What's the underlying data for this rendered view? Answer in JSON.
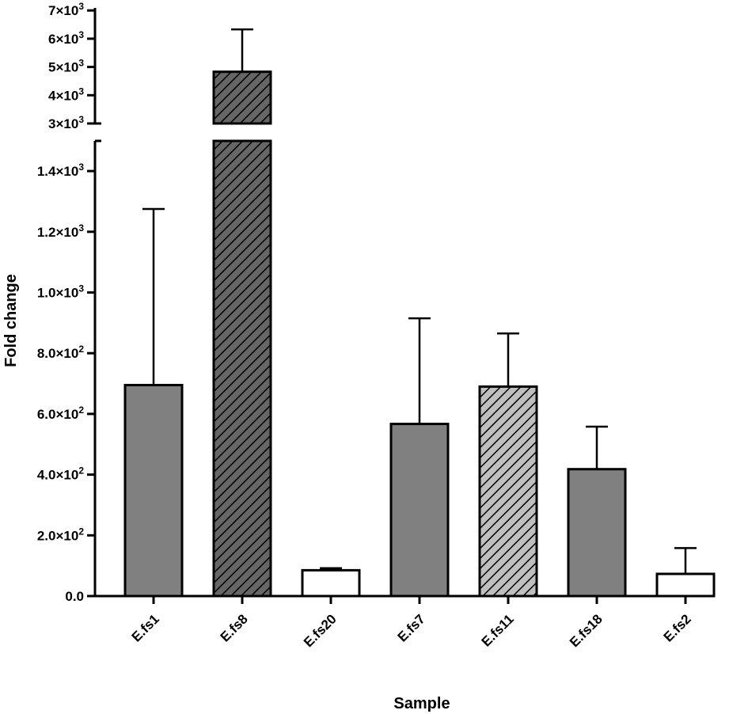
{
  "chart_data": {
    "type": "bar",
    "xlabel": "Sample",
    "ylabel": "Fold change",
    "axis_break": {
      "lower_range": [
        0,
        1500
      ],
      "upper_range": [
        3000,
        7000
      ]
    },
    "lower_ticks": [
      {
        "value": 0,
        "label": "0.0",
        "sup": ""
      },
      {
        "value": 200,
        "label": "2.0×10",
        "sup": "2"
      },
      {
        "value": 400,
        "label": "4.0×10",
        "sup": "2"
      },
      {
        "value": 600,
        "label": "6.0×10",
        "sup": "2"
      },
      {
        "value": 800,
        "label": "8.0×10",
        "sup": "2"
      },
      {
        "value": 1000,
        "label": "1.0×10",
        "sup": "3"
      },
      {
        "value": 1200,
        "label": "1.2×10",
        "sup": "3"
      },
      {
        "value": 1400,
        "label": "1.4×10",
        "sup": "3"
      }
    ],
    "upper_ticks": [
      {
        "value": 3000,
        "label": "3×10",
        "sup": "3"
      },
      {
        "value": 4000,
        "label": "4×10",
        "sup": "3"
      },
      {
        "value": 5000,
        "label": "5×10",
        "sup": "3"
      },
      {
        "value": 6000,
        "label": "6×10",
        "sup": "3"
      },
      {
        "value": 7000,
        "label": "7×10",
        "sup": "3"
      }
    ],
    "categories": [
      "E.fs1",
      "E.fs8",
      "E.fs20",
      "E.fs7",
      "E.fs11",
      "E.fs18",
      "E.fs2"
    ],
    "values": [
      695,
      4830,
      85,
      567,
      690,
      418,
      73
    ],
    "errors": [
      580,
      1500,
      7,
      348,
      175,
      140,
      85
    ],
    "fills": [
      {
        "color": "#808080",
        "pattern": "none"
      },
      {
        "color": "#666666",
        "pattern": "hatch"
      },
      {
        "color": "#ffffff",
        "pattern": "none"
      },
      {
        "color": "#808080",
        "pattern": "none"
      },
      {
        "color": "#bfbfbf",
        "pattern": "hatch"
      },
      {
        "color": "#808080",
        "pattern": "none"
      },
      {
        "color": "#ffffff",
        "pattern": "none"
      }
    ],
    "grid": false,
    "legend": "none"
  }
}
